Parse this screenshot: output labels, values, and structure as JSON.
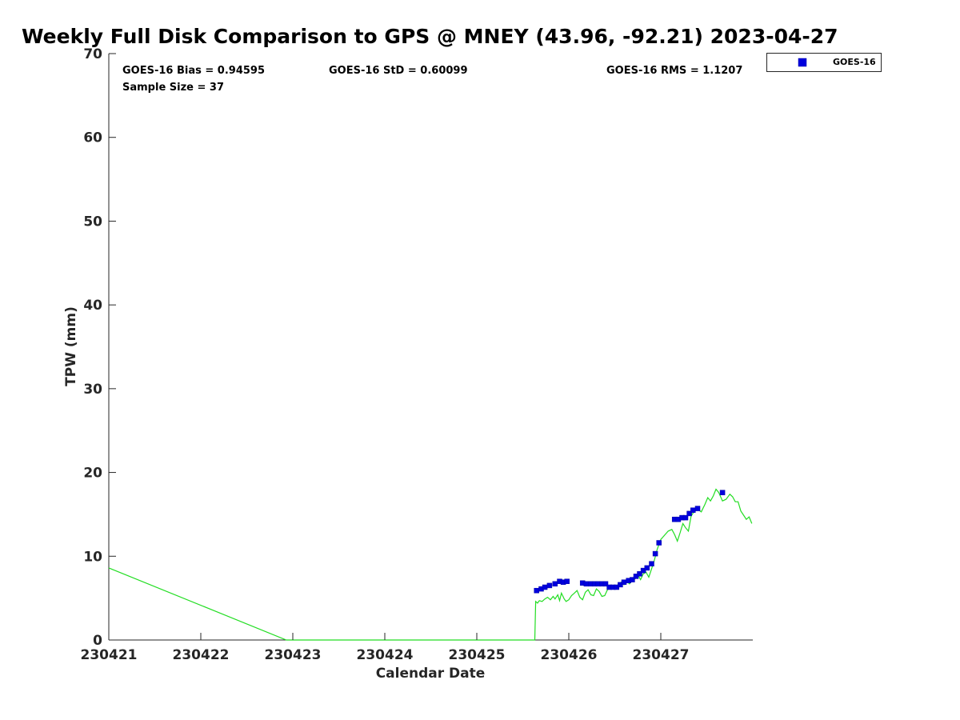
{
  "chart_data": {
    "type": "scatter",
    "title": "Weekly Full Disk Comparison to GPS @ MNEY (43.96, -92.21) 2023-04-27",
    "xlabel": "Calendar Date",
    "ylabel": "TPW (mm)",
    "xlim": [
      230421,
      230428
    ],
    "ylim": [
      0,
      70
    ],
    "x_ticks": [
      230421,
      230422,
      230423,
      230424,
      230425,
      230426,
      230427
    ],
    "x_tick_labels": [
      "230421",
      "230422",
      "230423",
      "230424",
      "230425",
      "230426",
      "230427"
    ],
    "y_ticks": [
      0,
      10,
      20,
      30,
      40,
      50,
      60,
      70
    ],
    "y_tick_labels": [
      "0",
      "10",
      "20",
      "30",
      "40",
      "50",
      "60",
      "70"
    ],
    "grid": false,
    "legend_position": "top-right-outside",
    "stats": {
      "bias": "GOES-16 Bias = 0.94595",
      "std": "GOES-16 StD = 0.60099",
      "rms": "GOES-16 RMS = 1.1207",
      "sample_size": "Sample Size = 37"
    },
    "series": [
      {
        "name": "GOES-16",
        "type": "scatter",
        "marker": "square",
        "color": "#0000dd",
        "x": [
          230425.65,
          230425.7,
          230425.74,
          230425.79,
          230425.85,
          230425.9,
          230425.94,
          230425.98,
          230426.15,
          230426.19,
          230426.24,
          230426.28,
          230426.32,
          230426.36,
          230426.4,
          230426.44,
          230426.48,
          230426.52,
          230426.56,
          230426.6,
          230426.65,
          230426.69,
          230426.73,
          230426.77,
          230426.81,
          230426.85,
          230426.9,
          230426.94,
          230426.98,
          230427.15,
          230427.19,
          230427.23,
          230427.27,
          230427.31,
          230427.35,
          230427.4,
          230427.67
        ],
        "y": [
          5.9,
          6.1,
          6.3,
          6.5,
          6.7,
          7.0,
          6.9,
          7.0,
          6.8,
          6.7,
          6.7,
          6.7,
          6.7,
          6.7,
          6.7,
          6.3,
          6.3,
          6.3,
          6.6,
          6.9,
          7.1,
          7.2,
          7.6,
          7.9,
          8.3,
          8.6,
          9.1,
          10.3,
          11.6,
          14.4,
          14.4,
          14.6,
          14.6,
          15.1,
          15.5,
          15.7,
          17.6
        ]
      },
      {
        "name": "",
        "type": "line",
        "color": "#22dd22",
        "x": [
          230421.0,
          230422.93,
          230425.63,
          230425.64,
          230425.66,
          230425.68,
          230425.71,
          230425.74,
          230425.77,
          230425.8,
          230425.83,
          230425.85,
          230425.88,
          230425.9,
          230425.92,
          230425.95,
          230425.97,
          230426.0,
          230426.03,
          230426.06,
          230426.09,
          230426.12,
          230426.15,
          230426.18,
          230426.21,
          230426.24,
          230426.27,
          230426.3,
          230426.33,
          230426.36,
          230426.39,
          230426.42,
          230426.45,
          230426.48,
          230426.51,
          230426.54,
          230426.57,
          230426.6,
          230426.63,
          230426.66,
          230426.69,
          230426.72,
          230426.75,
          230426.78,
          230426.81,
          230426.84,
          230426.87,
          230426.9,
          230426.93,
          230426.96,
          230427.0,
          230427.04,
          230427.08,
          230427.12,
          230427.15,
          230427.18,
          230427.21,
          230427.24,
          230427.27,
          230427.3,
          230427.33,
          230427.36,
          230427.4,
          230427.44,
          230427.48,
          230427.51,
          230427.54,
          230427.57,
          230427.6,
          230427.63,
          230427.67,
          230427.71,
          230427.75,
          230427.78,
          230427.81,
          230427.84,
          230427.87,
          230427.9,
          230427.93,
          230427.96,
          230427.99
        ],
        "y": [
          8.6,
          0.0,
          0.0,
          4.6,
          4.4,
          4.7,
          4.6,
          4.9,
          5.1,
          4.8,
          5.2,
          4.9,
          5.4,
          4.7,
          5.6,
          4.9,
          4.6,
          4.8,
          5.3,
          5.6,
          5.9,
          5.1,
          4.8,
          5.7,
          6.0,
          5.4,
          5.3,
          6.1,
          5.8,
          5.2,
          5.3,
          6.0,
          6.2,
          6.1,
          6.5,
          6.6,
          6.9,
          6.6,
          7.0,
          6.7,
          7.2,
          7.3,
          7.8,
          7.2,
          7.9,
          8.1,
          7.5,
          8.5,
          9.5,
          10.8,
          12.0,
          12.5,
          13.0,
          13.2,
          12.6,
          11.8,
          12.8,
          13.9,
          13.4,
          13.0,
          14.8,
          15.3,
          15.6,
          15.3,
          16.2,
          17.0,
          16.6,
          17.2,
          18.0,
          17.6,
          16.6,
          16.8,
          17.4,
          17.1,
          16.5,
          16.5,
          15.4,
          14.9,
          14.4,
          14.7,
          13.9
        ]
      }
    ]
  }
}
